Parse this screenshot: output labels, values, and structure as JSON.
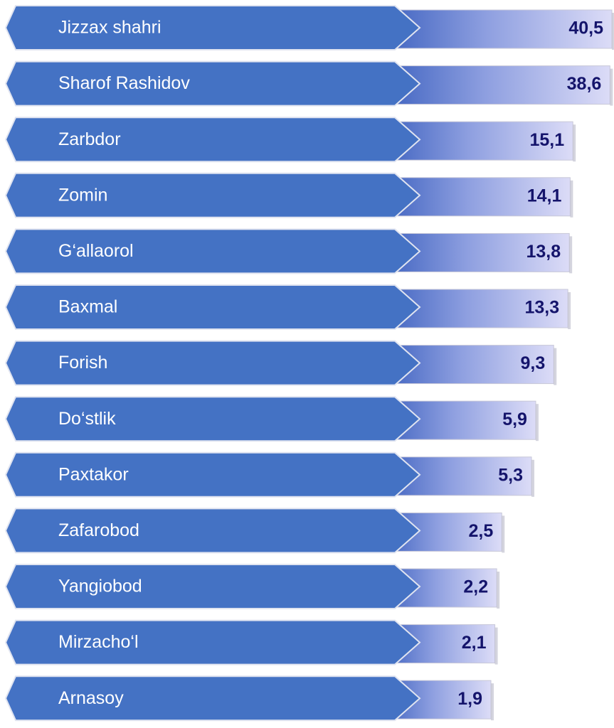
{
  "chart_data": {
    "type": "bar",
    "categories": [
      "Jizzax  shahri",
      "Sharof Rashidov",
      "Zarbdor",
      "Zomin",
      "G‘allaorol",
      "Baxmal",
      "Forish",
      "Do‘stlik",
      "Paxtakor",
      "Zafarobod",
      "Yangiobod",
      "Mirzacho‘l",
      "Arnasoy"
    ],
    "values": [
      40.5,
      38.6,
      15.1,
      14.1,
      13.8,
      13.3,
      9.3,
      5.9,
      5.3,
      2.5,
      2.2,
      2.1,
      1.9
    ],
    "value_labels": [
      "40,5",
      "38,6",
      "15,1",
      "14,1",
      "13,8",
      "13,3",
      "9,3",
      "5,9",
      "5,3",
      "2,5",
      "2,2",
      "2,1",
      "1,9"
    ],
    "color": "#4472c4"
  }
}
